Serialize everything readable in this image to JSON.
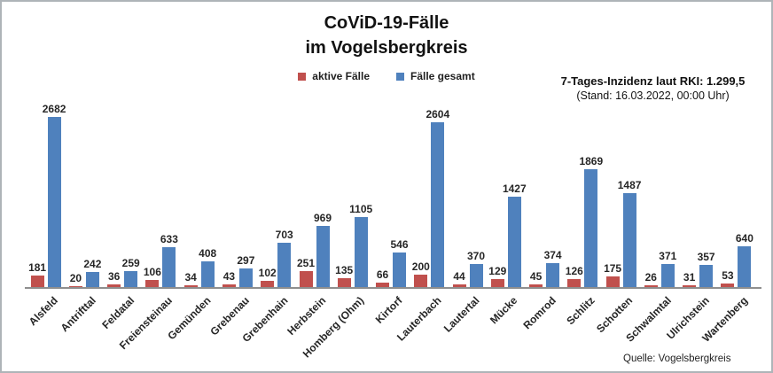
{
  "chart_data": {
    "type": "bar",
    "title": "CoViD-19-Fälle im Vogelsbergkreis",
    "title_lines": [
      "CoViD-19-Fälle",
      "im Vogelsbergkreis"
    ],
    "categories": [
      "Alsfeld",
      "Antrifttal",
      "Feldatal",
      "Freiensteinau",
      "Gemünden",
      "Grebenau",
      "Grebenhain",
      "Herbstein",
      "Homberg (Ohm)",
      "Kirtorf",
      "Lauterbach",
      "Lautertal",
      "Mücke",
      "Romrod",
      "Schlitz",
      "Schotten",
      "Schwalmtal",
      "Ulrichstein",
      "Wartenberg"
    ],
    "series": [
      {
        "name": "aktive Fälle",
        "color": "#C0504D",
        "values": [
          181,
          20,
          36,
          106,
          34,
          43,
          102,
          251,
          135,
          66,
          200,
          44,
          129,
          45,
          126,
          175,
          26,
          31,
          53
        ]
      },
      {
        "name": "Fälle gesamt",
        "color": "#4F81BD",
        "values": [
          2682,
          242,
          259,
          633,
          408,
          297,
          703,
          969,
          1105,
          546,
          2604,
          370,
          1427,
          374,
          1869,
          1487,
          371,
          357,
          640
        ]
      }
    ],
    "ylim": [
      0,
      2800
    ],
    "grid": false,
    "legend_position": "top",
    "data_labels": true,
    "xlabel": "",
    "ylabel": ""
  },
  "annotation": {
    "line1": "7-Tages-Inzidenz laut RKI: 1.299,5",
    "line2": "(Stand: 16.03.2022, 00:00 Uhr)"
  },
  "source": "Quelle: Vogelsbergkreis",
  "colors": {
    "accent_red": "#C0504D",
    "accent_blue": "#4F81BD",
    "axis": "#8f8f8f"
  }
}
